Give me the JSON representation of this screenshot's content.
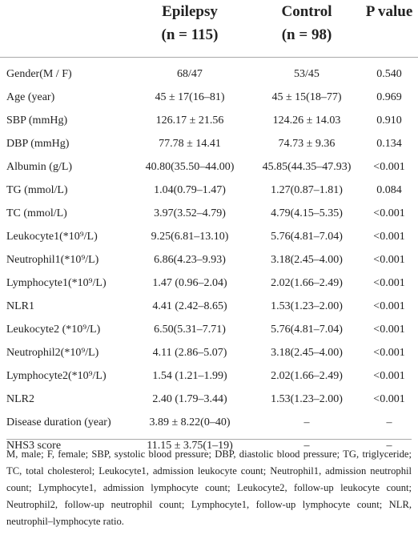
{
  "table": {
    "header": [
      [
        "Epilepsy",
        "(n = 115)"
      ],
      [
        "Control",
        "(n = 98)"
      ],
      [
        "P value"
      ]
    ],
    "rows": [
      [
        "Gender(M / F)",
        "68/47",
        "53/45",
        "0.540"
      ],
      [
        "Age (year)",
        "45 ± 17(16–81)",
        "45 ± 15(18–77)",
        "0.969"
      ],
      [
        "SBP (mmHg)",
        "126.17 ± 21.56",
        "124.26 ± 14.03",
        "0.910"
      ],
      [
        "DBP (mmHg)",
        "77.78 ± 14.41",
        "74.73 ± 9.36",
        "0.134"
      ],
      [
        "Albumin (g/L)",
        "40.80(35.50–44.00)",
        "45.85(44.35–47.93)",
        "<0.001"
      ],
      [
        "TG (mmol/L)",
        "1.04(0.79–1.47)",
        "1.27(0.87–1.81)",
        "0.084"
      ],
      [
        "TC (mmol/L)",
        "3.97(3.52–4.79)",
        "4.79(4.15–5.35)",
        "<0.001"
      ],
      [
        "Leukocyte1(*10⁹/L)",
        "9.25(6.81–13.10)",
        "5.76(4.81–7.04)",
        "<0.001"
      ],
      [
        "Neutrophil1(*10⁹/L)",
        "6.86(4.23–9.93)",
        "3.18(2.45–4.00)",
        "<0.001"
      ],
      [
        "Lymphocyte1(*10⁹/L)",
        "1.47 (0.96–2.04)",
        "2.02(1.66–2.49)",
        "<0.001"
      ],
      [
        "NLR1",
        "4.41 (2.42–8.65)",
        "1.53(1.23–2.00)",
        "<0.001"
      ],
      [
        "Leukocyte2 (*10⁹/L)",
        "6.50(5.31–7.71)",
        "5.76(4.81–7.04)",
        "<0.001"
      ],
      [
        "Neutrophil2(*10⁹/L)",
        "4.11 (2.86–5.07)",
        "3.18(2.45–4.00)",
        "<0.001"
      ],
      [
        "Lymphocyte2(*10⁹/L)",
        "1.54 (1.21–1.99)",
        "2.02(1.66–2.49)",
        "<0.001"
      ],
      [
        "NLR2",
        "2.40 (1.79–3.44)",
        "1.53(1.23–2.00)",
        "<0.001"
      ],
      [
        "Disease duration (year)",
        "3.89 ± 8.22(0–40)",
        "–",
        "–"
      ],
      [
        "NHS3 score",
        "11.15 ± 3.75(1–19)",
        "–",
        "–"
      ]
    ],
    "footnote": "M, male; F, female; SBP, systolic blood pressure; DBP, diastolic blood pressure; TG, triglyceride; TC, total cholesterol; Leukocyte1, admission leukocyte count; Neutrophil1, admission neutrophil count; Lymphocyte1, admission lymphocyte count; Leukocyte2, follow-up leukocyte count; Neutrophil2, follow-up neutrophil count; Lymphocyte1, follow-up lymphocyte count; NLR, neutrophil–lymphocyte ratio."
  }
}
